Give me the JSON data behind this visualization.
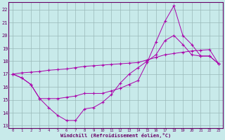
{
  "xlabel": "Windchill (Refroidissement éolien,°C)",
  "bg_color": "#c8eaea",
  "line_color": "#aa00aa",
  "grid_color": "#aaccaa",
  "x_ticks": [
    0,
    1,
    2,
    3,
    4,
    5,
    6,
    7,
    8,
    9,
    10,
    11,
    12,
    13,
    14,
    15,
    16,
    17,
    18,
    19,
    20,
    21,
    22,
    23
  ],
  "y_ticks": [
    13,
    14,
    15,
    16,
    17,
    18,
    19,
    20,
    21,
    22
  ],
  "xlim": [
    -0.5,
    23.5
  ],
  "ylim": [
    12.8,
    22.6
  ],
  "series1_x": [
    0,
    1,
    2,
    3,
    4,
    5,
    6,
    7,
    8,
    9,
    10,
    11,
    12,
    13,
    14,
    15,
    16,
    17,
    18,
    19,
    20,
    21,
    22,
    23
  ],
  "series1_y": [
    17.0,
    16.7,
    16.2,
    15.1,
    14.4,
    13.8,
    13.4,
    13.4,
    14.3,
    14.4,
    14.8,
    15.4,
    16.3,
    17.0,
    17.5,
    18.0,
    18.5,
    19.6,
    20.0,
    19.3,
    18.5,
    18.4,
    18.4,
    17.8
  ],
  "series2_x": [
    0,
    1,
    2,
    3,
    4,
    5,
    6,
    7,
    8,
    9,
    10,
    11,
    12,
    13,
    14,
    15,
    16,
    17,
    18,
    19,
    20,
    21,
    22,
    23
  ],
  "series2_y": [
    17.0,
    17.1,
    17.15,
    17.2,
    17.3,
    17.35,
    17.4,
    17.5,
    17.6,
    17.65,
    17.7,
    17.75,
    17.8,
    17.85,
    17.9,
    18.1,
    18.3,
    18.5,
    18.6,
    18.7,
    18.8,
    18.85,
    18.9,
    17.8
  ],
  "series3_x": [
    0,
    1,
    2,
    3,
    4,
    5,
    6,
    7,
    8,
    9,
    10,
    11,
    12,
    13,
    14,
    15,
    16,
    17,
    18,
    19,
    20,
    21,
    22,
    23
  ],
  "series3_y": [
    17.0,
    16.7,
    16.2,
    15.1,
    15.1,
    15.1,
    15.2,
    15.3,
    15.5,
    15.5,
    15.5,
    15.7,
    15.9,
    16.2,
    16.5,
    17.9,
    19.5,
    21.1,
    22.3,
    20.0,
    19.3,
    18.4,
    18.4,
    17.8
  ]
}
